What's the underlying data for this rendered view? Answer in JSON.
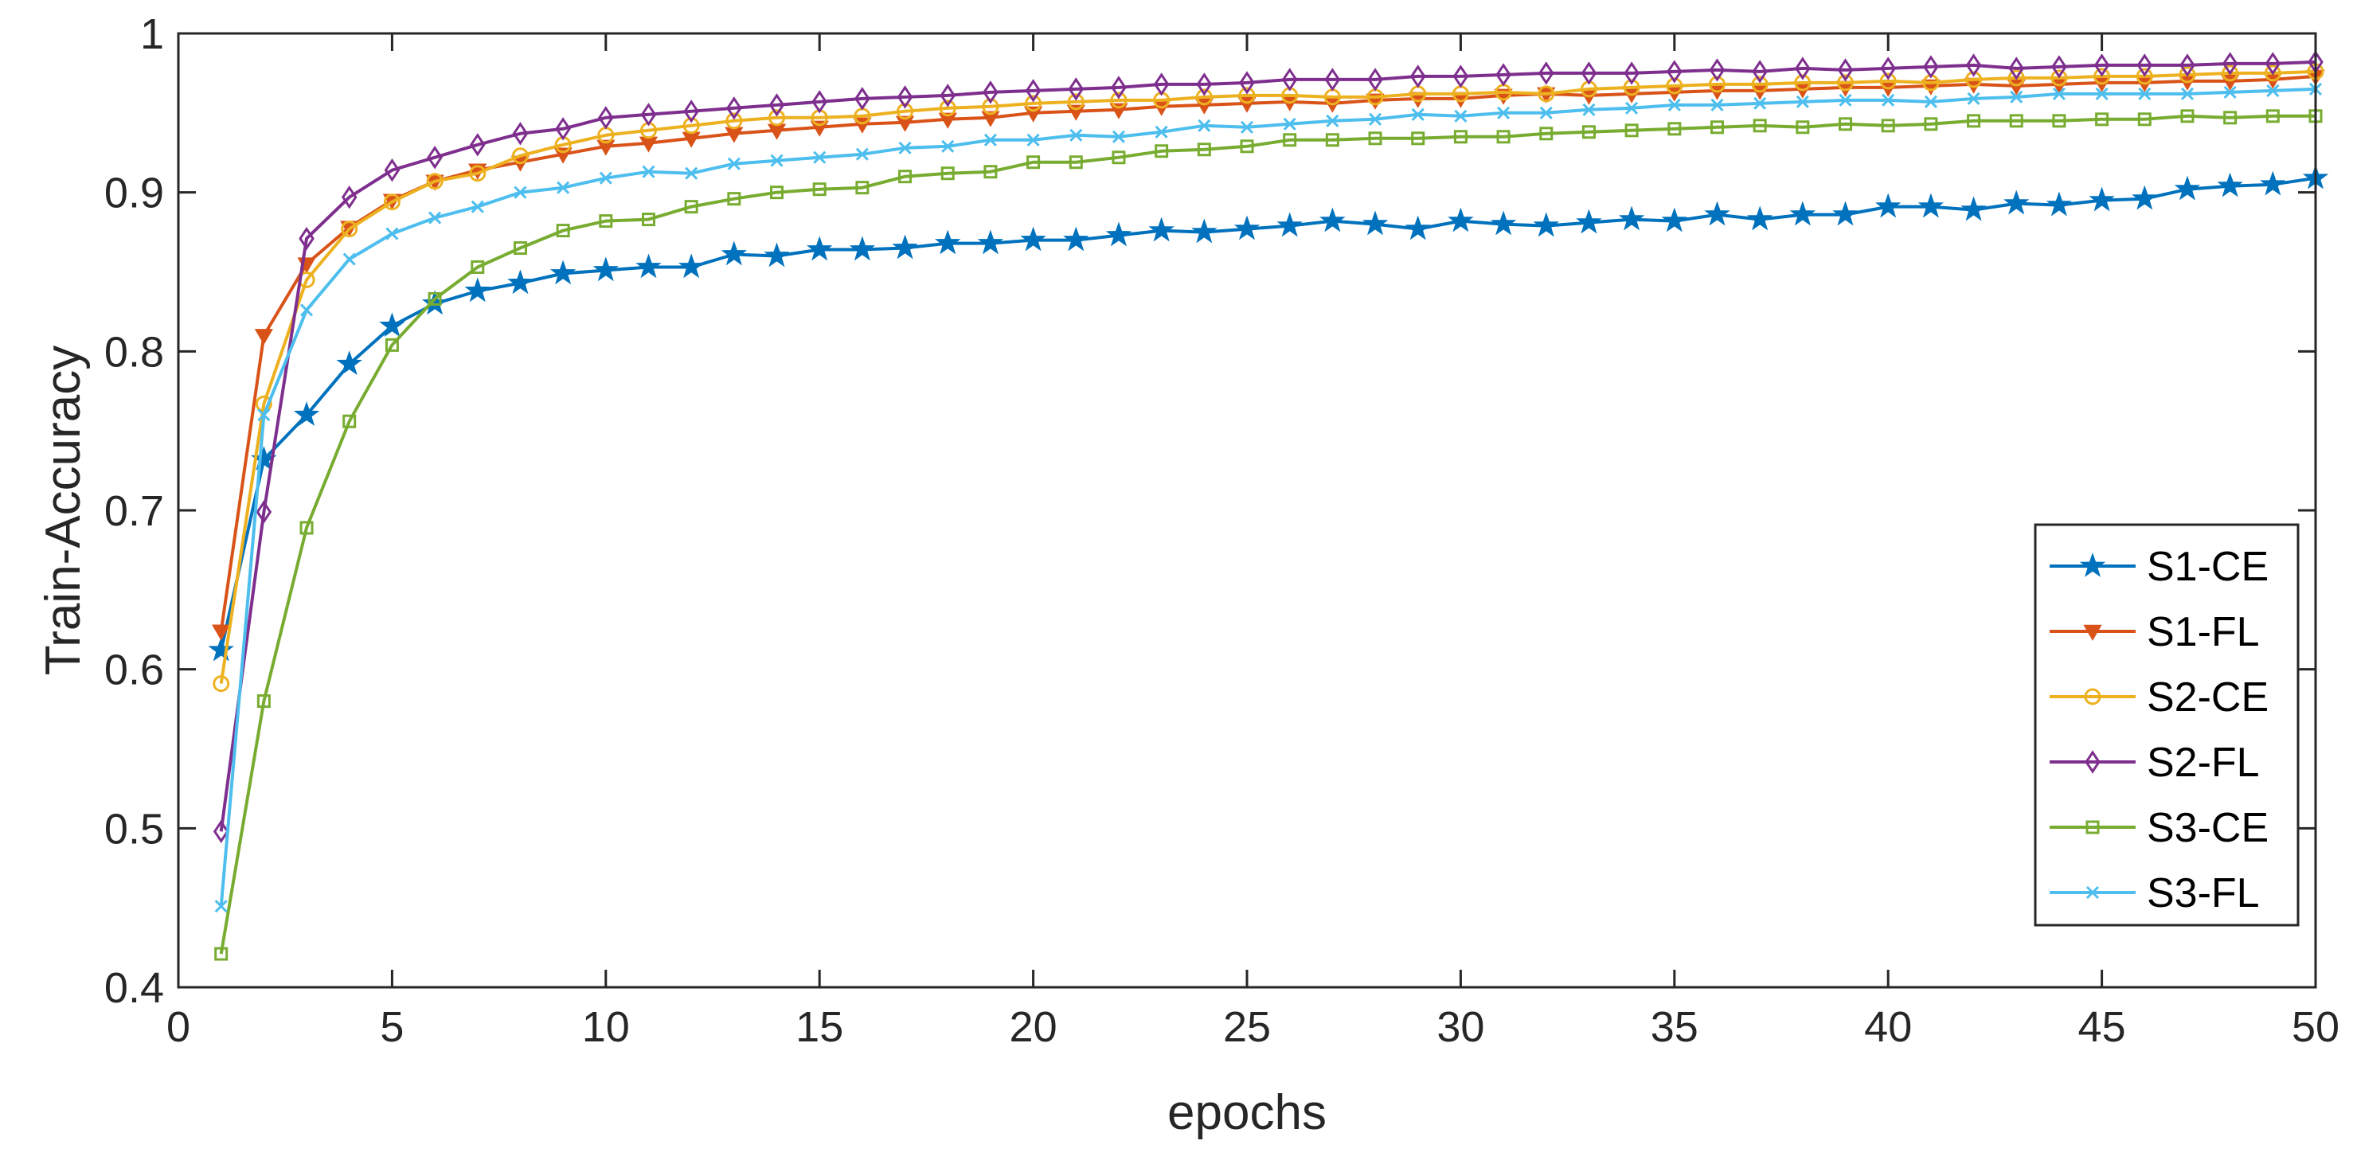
{
  "chart_data": {
    "type": "line",
    "title": "",
    "xlabel": "epochs",
    "ylabel": "Train-Accuracy",
    "xlim": [
      0,
      50
    ],
    "ylim": [
      0.4,
      1
    ],
    "xticks": [
      0,
      5,
      10,
      15,
      20,
      25,
      30,
      35,
      40,
      45,
      50
    ],
    "yticks": [
      0.4,
      0.5,
      0.6,
      0.7,
      0.8,
      0.9,
      1
    ],
    "xtick_labels": [
      "0",
      "5",
      "10",
      "15",
      "20",
      "25",
      "30",
      "35",
      "40",
      "45",
      "50"
    ],
    "ytick_labels": [
      "0.4",
      "0.5",
      "0.6",
      "0.7",
      "0.8",
      "0.9",
      "1"
    ],
    "grid": false,
    "legend_position": "bottom-right",
    "x": [
      1,
      2,
      3,
      4,
      5,
      6,
      7,
      8,
      9,
      10,
      11,
      12,
      13,
      14,
      15,
      16,
      17,
      18,
      19,
      20,
      21,
      22,
      23,
      24,
      25,
      26,
      27,
      28,
      29,
      30,
      31,
      32,
      33,
      34,
      35,
      36,
      37,
      38,
      39,
      40,
      41,
      42,
      43,
      44,
      45,
      46,
      47,
      48,
      49,
      50
    ],
    "series": [
      {
        "name": "S1-CE",
        "color": "#0072BD",
        "marker": "star",
        "values": [
          0.612,
          0.732,
          0.76,
          0.792,
          0.816,
          0.83,
          0.838,
          0.843,
          0.849,
          0.851,
          0.853,
          0.853,
          0.861,
          0.86,
          0.864,
          0.864,
          0.865,
          0.868,
          0.868,
          0.87,
          0.87,
          0.873,
          0.876,
          0.875,
          0.877,
          0.879,
          0.882,
          0.88,
          0.877,
          0.882,
          0.88,
          0.879,
          0.881,
          0.883,
          0.882,
          0.886,
          0.883,
          0.886,
          0.886,
          0.891,
          0.891,
          0.889,
          0.893,
          0.892,
          0.895,
          0.896,
          0.902,
          0.904,
          0.905,
          0.909
        ]
      },
      {
        "name": "S1-FL",
        "color": "#D95319",
        "marker": "triangle-down",
        "values": [
          0.624,
          0.81,
          0.855,
          0.878,
          0.895,
          0.907,
          0.914,
          0.919,
          0.924,
          0.929,
          0.931,
          0.934,
          0.937,
          0.939,
          0.941,
          0.943,
          0.944,
          0.946,
          0.947,
          0.95,
          0.951,
          0.952,
          0.954,
          0.955,
          0.956,
          0.957,
          0.956,
          0.958,
          0.959,
          0.959,
          0.961,
          0.962,
          0.961,
          0.962,
          0.963,
          0.964,
          0.964,
          0.965,
          0.966,
          0.966,
          0.967,
          0.968,
          0.967,
          0.968,
          0.969,
          0.969,
          0.97,
          0.97,
          0.971,
          0.973
        ]
      },
      {
        "name": "S2-CE",
        "color": "#EDB120",
        "marker": "circle",
        "values": [
          0.591,
          0.767,
          0.845,
          0.877,
          0.894,
          0.907,
          0.912,
          0.923,
          0.93,
          0.936,
          0.939,
          0.942,
          0.945,
          0.947,
          0.947,
          0.948,
          0.951,
          0.953,
          0.954,
          0.956,
          0.957,
          0.958,
          0.958,
          0.96,
          0.961,
          0.961,
          0.96,
          0.96,
          0.962,
          0.962,
          0.963,
          0.962,
          0.965,
          0.966,
          0.967,
          0.968,
          0.968,
          0.969,
          0.969,
          0.97,
          0.969,
          0.971,
          0.972,
          0.972,
          0.973,
          0.973,
          0.974,
          0.975,
          0.975,
          0.976
        ]
      },
      {
        "name": "S2-FL",
        "color": "#7E2F8E",
        "marker": "diamond",
        "values": [
          0.498,
          0.699,
          0.871,
          0.897,
          0.914,
          0.922,
          0.93,
          0.937,
          0.94,
          0.947,
          0.949,
          0.951,
          0.953,
          0.955,
          0.957,
          0.959,
          0.96,
          0.961,
          0.963,
          0.964,
          0.965,
          0.966,
          0.968,
          0.968,
          0.969,
          0.971,
          0.971,
          0.971,
          0.973,
          0.973,
          0.974,
          0.975,
          0.975,
          0.975,
          0.976,
          0.977,
          0.976,
          0.978,
          0.977,
          0.978,
          0.979,
          0.98,
          0.978,
          0.979,
          0.98,
          0.98,
          0.98,
          0.981,
          0.981,
          0.982
        ]
      },
      {
        "name": "S3-CE",
        "color": "#77AC30",
        "marker": "square",
        "values": [
          0.421,
          0.58,
          0.689,
          0.756,
          0.804,
          0.833,
          0.853,
          0.865,
          0.876,
          0.882,
          0.883,
          0.891,
          0.896,
          0.9,
          0.902,
          0.903,
          0.91,
          0.912,
          0.913,
          0.919,
          0.919,
          0.922,
          0.926,
          0.927,
          0.929,
          0.933,
          0.933,
          0.934,
          0.934,
          0.935,
          0.935,
          0.937,
          0.938,
          0.939,
          0.94,
          0.941,
          0.942,
          0.941,
          0.943,
          0.942,
          0.943,
          0.945,
          0.945,
          0.945,
          0.946,
          0.946,
          0.948,
          0.947,
          0.948,
          0.948
        ]
      },
      {
        "name": "S3-FL",
        "color": "#4DBEEE",
        "marker": "x",
        "values": [
          0.451,
          0.76,
          0.826,
          0.858,
          0.874,
          0.884,
          0.891,
          0.9,
          0.903,
          0.909,
          0.913,
          0.912,
          0.918,
          0.92,
          0.922,
          0.924,
          0.928,
          0.929,
          0.933,
          0.933,
          0.936,
          0.935,
          0.938,
          0.942,
          0.941,
          0.943,
          0.945,
          0.946,
          0.949,
          0.948,
          0.95,
          0.95,
          0.952,
          0.953,
          0.955,
          0.955,
          0.956,
          0.957,
          0.958,
          0.958,
          0.957,
          0.959,
          0.96,
          0.962,
          0.962,
          0.962,
          0.962,
          0.963,
          0.964,
          0.965
        ]
      }
    ]
  }
}
